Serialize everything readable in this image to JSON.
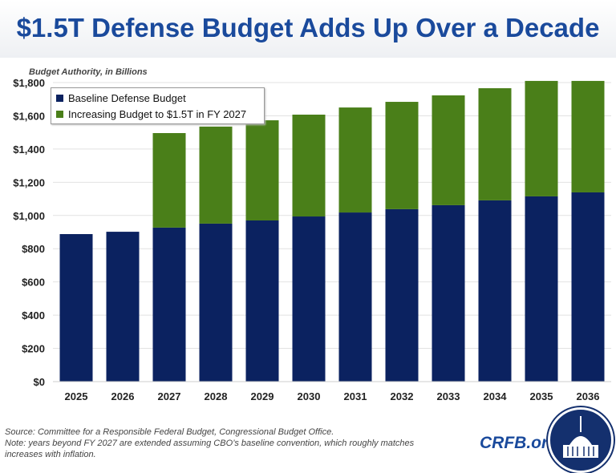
{
  "chart_data": {
    "type": "bar",
    "stacked": true,
    "title": "$1.5T Defense Budget Adds Up Over a Decade",
    "ylabel": "Budget Authority, in Billions",
    "xlabel": "",
    "categories": [
      "2025",
      "2026",
      "2027",
      "2028",
      "2029",
      "2030",
      "2031",
      "2032",
      "2033",
      "2034",
      "2035",
      "2036"
    ],
    "series": [
      {
        "name": "Baseline Defense Budget",
        "color": "#0b2260",
        "values": [
          888,
          902,
          927,
          951,
          970,
          994,
          1018,
          1038,
          1062,
          1091,
          1115,
          1139
        ]
      },
      {
        "name": "Increasing Budget to $1.5T in FY 2027",
        "color": "#4a7f19",
        "values": [
          0,
          0,
          569,
          584,
          603,
          613,
          632,
          646,
          661,
          675,
          695,
          671
        ]
      }
    ],
    "ylim": [
      0,
      1800
    ],
    "yticks": [
      "$0",
      "$200",
      "$400",
      "$600",
      "$800",
      "$1,000",
      "$1,200",
      "$1,400",
      "$1,600",
      "$1,800"
    ],
    "grid": true,
    "legend": "top-left"
  },
  "footer": {
    "source": "Source: Committee for a Responsible Federal Budget, Congressional Budget Office.",
    "note": "Note: years beyond FY 2027 are extended assuming CBO’s baseline convention, which roughly matches increases with inflation.",
    "brand": "CRFB.org"
  }
}
